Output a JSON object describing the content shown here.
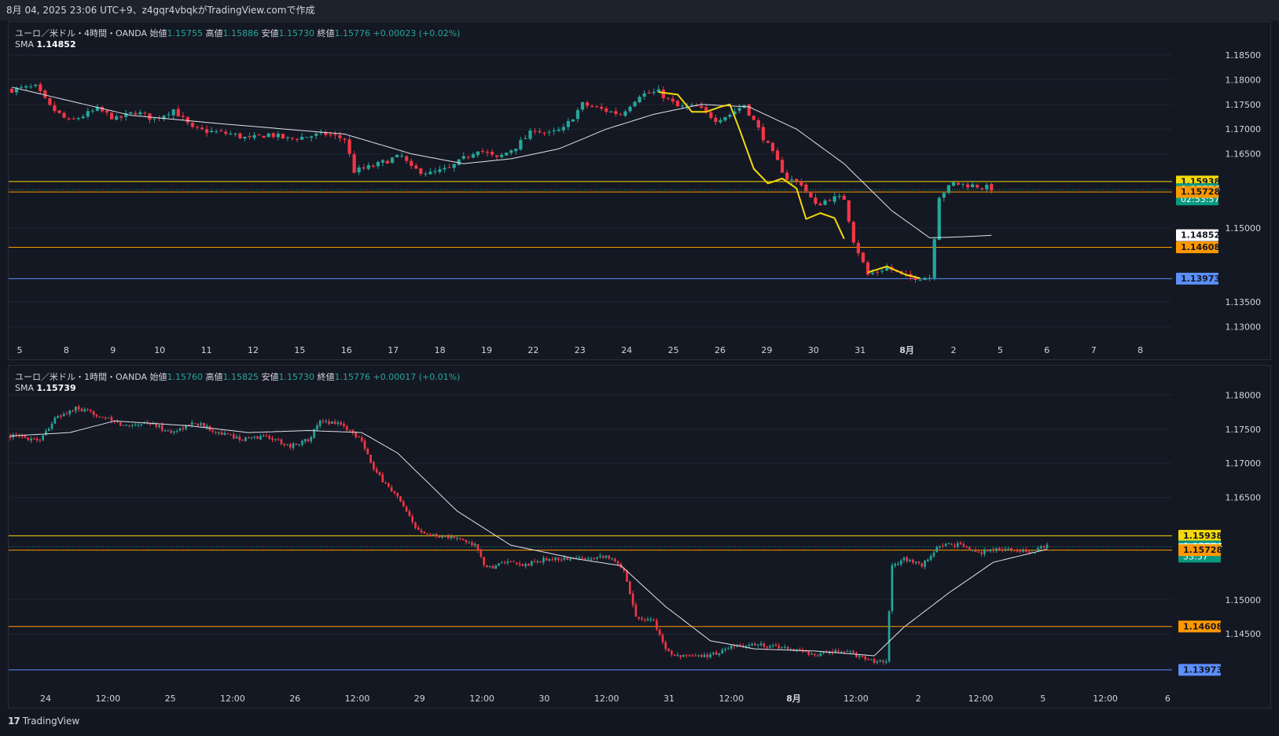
{
  "header": {
    "caption": "8月 04, 2025 23:06 UTC+9、z4gqr4vbqkがTradingView.comで作成"
  },
  "footer": {
    "brand": "TradingView"
  },
  "colors": {
    "up": "#26a69a",
    "down": "#f23645",
    "bg": "#141823",
    "grid": "#1f2430",
    "level_yellow": "#f5d90a",
    "level_orange": "#ff9800",
    "level_blue": "#5b8ff9",
    "sma": "#e0e3eb",
    "yellow_curve": "#f5d90a"
  },
  "panes": [
    {
      "legend": {
        "symbol": "ユーロ／米ドル・4時間・OANDA",
        "o_label": "始値",
        "o": "1.15755",
        "h_label": "高値",
        "h": "1.15886",
        "l_label": "安値",
        "l": "1.15730",
        "c_label": "終値",
        "c": "1.15776",
        "change": "+0.00023 (+0.02%)",
        "sma_label": "SMA",
        "sma": "1.14852"
      },
      "price_ticks": [
        "1.18500",
        "1.18000",
        "1.17500",
        "1.17000",
        "1.16500",
        "1.15000",
        "1.13500",
        "1.13000"
      ],
      "time_ticks": [
        "5",
        "8",
        "9",
        "10",
        "11",
        "12",
        "15",
        "16",
        "17",
        "18",
        "19",
        "22",
        "23",
        "24",
        "25",
        "26",
        "29",
        "30",
        "31",
        "8月",
        "2",
        "5",
        "6",
        "7",
        "8"
      ],
      "badges": [
        {
          "text": "1.15938",
          "price": 1.15938,
          "bg": "#f5d90a",
          "fg": "#131722"
        },
        {
          "text": "1.15776",
          "price": 1.15776,
          "bg": "#089981",
          "fg": "#ffffff",
          "sub": "02:53:57"
        },
        {
          "text": "1.15728",
          "price": 1.15728,
          "bg": "#ff9800",
          "fg": "#131722"
        },
        {
          "text": "1.14852",
          "price": 1.14852,
          "bg": "#ffffff",
          "fg": "#131722"
        },
        {
          "text": "1.14608",
          "price": 1.14608,
          "bg": "#ff9800",
          "fg": "#131722"
        },
        {
          "text": "1.13973",
          "price": 1.13973,
          "bg": "#5b8ff9",
          "fg": "#131722"
        }
      ]
    },
    {
      "legend": {
        "symbol": "ユーロ／米ドル・1時間・OANDA",
        "o_label": "始値",
        "o": "1.15760",
        "h_label": "高値",
        "h": "1.15825",
        "l_label": "安値",
        "l": "1.15730",
        "c_label": "終値",
        "c": "1.15776",
        "change": "+0.00017 (+0.01%)",
        "sma_label": "SMA",
        "sma": "1.15739"
      },
      "price_ticks": [
        "1.18000",
        "1.17500",
        "1.17000",
        "1.16500",
        "1.15000",
        "1.14500"
      ],
      "time_ticks": [
        "24",
        "12:00",
        "25",
        "12:00",
        "26",
        "12:00",
        "29",
        "12:00",
        "30",
        "12:00",
        "31",
        "12:00",
        "8月",
        "12:00",
        "2",
        "12:00",
        "5",
        "12:00",
        "6"
      ],
      "badges": [
        {
          "text": "1.15938",
          "price": 1.15938,
          "bg": "#f5d90a",
          "fg": "#131722"
        },
        {
          "text": "1.15776",
          "price": 1.15776,
          "bg": "#089981",
          "fg": "#ffffff",
          "sub": "53:57"
        },
        {
          "text": "1.15739",
          "price": 1.15739,
          "bg": "#ffffff",
          "fg": "#131722"
        },
        {
          "text": "1.15728",
          "price": 1.15728,
          "bg": "#ff9800",
          "fg": "#131722"
        },
        {
          "text": "1.14608",
          "price": 1.14608,
          "bg": "#ff9800",
          "fg": "#131722"
        },
        {
          "text": "1.13973",
          "price": 1.13973,
          "bg": "#5b8ff9",
          "fg": "#131722"
        }
      ]
    }
  ],
  "chart_data": [
    {
      "type": "candlestick",
      "title": "ユーロ／米ドル・4時間・OANDA",
      "ylim": [
        1.1288,
        1.1885
      ],
      "levels": [
        {
          "price": 1.15938,
          "color": "#f5d90a"
        },
        {
          "price": 1.15728,
          "color": "#ff9800"
        },
        {
          "price": 1.14608,
          "color": "#ff9800"
        },
        {
          "price": 1.13973,
          "color": "#5b8ff9"
        }
      ],
      "close_path": [
        [
          0,
          1.178
        ],
        [
          5,
          1.1785
        ],
        [
          8,
          1.1745
        ],
        [
          12,
          1.1715
        ],
        [
          18,
          1.174
        ],
        [
          22,
          1.172
        ],
        [
          26,
          1.1735
        ],
        [
          30,
          1.172
        ],
        [
          34,
          1.174
        ],
        [
          38,
          1.17
        ],
        [
          42,
          1.1695
        ],
        [
          46,
          1.169
        ],
        [
          50,
          1.168
        ],
        [
          54,
          1.169
        ],
        [
          58,
          1.168
        ],
        [
          62,
          1.1685
        ],
        [
          66,
          1.169
        ],
        [
          70,
          1.168
        ],
        [
          72,
          1.1615
        ],
        [
          76,
          1.1625
        ],
        [
          80,
          1.164
        ],
        [
          82,
          1.1645
        ],
        [
          84,
          1.162
        ],
        [
          88,
          1.161
        ],
        [
          92,
          1.162
        ],
        [
          95,
          1.164
        ],
        [
          98,
          1.166
        ],
        [
          102,
          1.164
        ],
        [
          106,
          1.1665
        ],
        [
          110,
          1.17
        ],
        [
          113,
          1.169
        ],
        [
          116,
          1.17
        ],
        [
          120,
          1.175
        ],
        [
          124,
          1.174
        ],
        [
          128,
          1.173
        ],
        [
          132,
          1.177
        ],
        [
          136,
          1.1775
        ],
        [
          140,
          1.1745
        ],
        [
          144,
          1.1745
        ],
        [
          148,
          1.172
        ],
        [
          151,
          1.173
        ],
        [
          154,
          1.175
        ],
        [
          157,
          1.17
        ],
        [
          160,
          1.165
        ],
        [
          163,
          1.16
        ],
        [
          166,
          1.159
        ],
        [
          169,
          1.1545
        ],
        [
          172,
          1.156
        ],
        [
          175,
          1.156
        ],
        [
          177,
          1.1475
        ],
        [
          180,
          1.1405
        ],
        [
          184,
          1.142
        ],
        [
          188,
          1.14
        ],
        [
          193,
          1.14
        ],
        [
          195,
          1.1565
        ],
        [
          198,
          1.159
        ],
        [
          203,
          1.1585
        ],
        [
          206,
          1.158
        ]
      ],
      "sma": [
        [
          0,
          1.1785
        ],
        [
          25,
          1.1728
        ],
        [
          45,
          1.171
        ],
        [
          70,
          1.169
        ],
        [
          84,
          1.165
        ],
        [
          95,
          1.163
        ],
        [
          105,
          1.164
        ],
        [
          115,
          1.166
        ],
        [
          125,
          1.17
        ],
        [
          135,
          1.173
        ],
        [
          145,
          1.175
        ],
        [
          155,
          1.1745
        ],
        [
          165,
          1.17
        ],
        [
          175,
          1.163
        ],
        [
          185,
          1.1535
        ],
        [
          193,
          1.148
        ],
        [
          200,
          1.1482
        ],
        [
          206,
          1.1485
        ]
      ],
      "yellow_curve": [
        [
          136,
          1.1775
        ],
        [
          140,
          1.177
        ],
        [
          143,
          1.1735
        ],
        [
          146,
          1.1735
        ],
        [
          149,
          1.1745
        ],
        [
          151,
          1.175
        ],
        [
          153,
          1.17
        ],
        [
          156,
          1.162
        ],
        [
          159,
          1.159
        ],
        [
          162,
          1.16
        ],
        [
          165,
          1.158
        ],
        [
          167,
          1.1518
        ],
        [
          170,
          1.153
        ],
        [
          173,
          1.152
        ],
        [
          175,
          1.1478
        ],
        null,
        [
          180,
          1.141
        ],
        [
          184,
          1.1422
        ],
        [
          188,
          1.1405
        ],
        [
          191,
          1.1398
        ]
      ],
      "count": 207
    },
    {
      "type": "candlestick",
      "title": "ユーロ／米ドル・1時間・OANDA",
      "ylim": [
        1.1388,
        1.182
      ],
      "levels": [
        {
          "price": 1.15938,
          "color": "#f5d90a"
        },
        {
          "price": 1.15728,
          "color": "#ff9800"
        },
        {
          "price": 1.14608,
          "color": "#ff9800"
        },
        {
          "price": 1.13973,
          "color": "#5b8ff9"
        }
      ],
      "close_path": [
        [
          0,
          1.174
        ],
        [
          10,
          1.1735
        ],
        [
          15,
          1.1765
        ],
        [
          22,
          1.178
        ],
        [
          30,
          1.177
        ],
        [
          38,
          1.1755
        ],
        [
          46,
          1.176
        ],
        [
          54,
          1.1745
        ],
        [
          62,
          1.176
        ],
        [
          70,
          1.1745
        ],
        [
          78,
          1.1735
        ],
        [
          86,
          1.174
        ],
        [
          94,
          1.1725
        ],
        [
          100,
          1.1735
        ],
        [
          104,
          1.176
        ],
        [
          110,
          1.176
        ],
        [
          118,
          1.1735
        ],
        [
          122,
          1.169
        ],
        [
          130,
          1.165
        ],
        [
          136,
          1.1605
        ],
        [
          142,
          1.1595
        ],
        [
          150,
          1.159
        ],
        [
          156,
          1.158
        ],
        [
          160,
          1.1545
        ],
        [
          166,
          1.1555
        ],
        [
          172,
          1.155
        ],
        [
          180,
          1.156
        ],
        [
          190,
          1.156
        ],
        [
          200,
          1.1565
        ],
        [
          206,
          1.1545
        ],
        [
          210,
          1.1475
        ],
        [
          216,
          1.147
        ],
        [
          220,
          1.1425
        ],
        [
          228,
          1.1415
        ],
        [
          236,
          1.142
        ],
        [
          242,
          1.143
        ],
        [
          250,
          1.1435
        ],
        [
          260,
          1.143
        ],
        [
          270,
          1.142
        ],
        [
          280,
          1.1425
        ],
        [
          290,
          1.141
        ],
        [
          294,
          1.1412
        ],
        [
          296,
          1.155
        ],
        [
          300,
          1.156
        ],
        [
          306,
          1.155
        ],
        [
          312,
          1.158
        ],
        [
          318,
          1.158
        ],
        [
          326,
          1.157
        ],
        [
          334,
          1.1575
        ],
        [
          342,
          1.157
        ],
        [
          348,
          1.1578
        ]
      ],
      "sma": [
        [
          0,
          1.174
        ],
        [
          20,
          1.1745
        ],
        [
          35,
          1.1762
        ],
        [
          60,
          1.1755
        ],
        [
          80,
          1.1745
        ],
        [
          100,
          1.1748
        ],
        [
          118,
          1.1745
        ],
        [
          130,
          1.1715
        ],
        [
          150,
          1.163
        ],
        [
          168,
          1.158
        ],
        [
          190,
          1.156
        ],
        [
          205,
          1.155
        ],
        [
          220,
          1.149
        ],
        [
          235,
          1.144
        ],
        [
          250,
          1.1428
        ],
        [
          270,
          1.1425
        ],
        [
          290,
          1.1418
        ],
        [
          300,
          1.146
        ],
        [
          315,
          1.151
        ],
        [
          330,
          1.1555
        ],
        [
          348,
          1.1574
        ]
      ],
      "count": 349
    }
  ]
}
